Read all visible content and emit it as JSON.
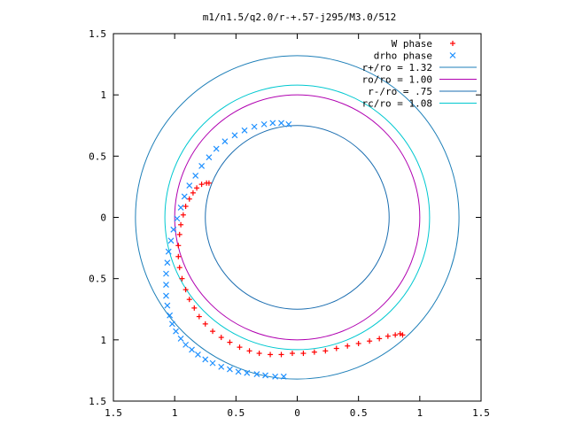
{
  "chart_data": {
    "type": "scatter",
    "title": "m1/n1.5/q2.0/r-+.57-j295/M3.0/512",
    "xlabel": "",
    "ylabel": "",
    "xlim": [
      -1.5,
      1.5
    ],
    "ylim": [
      -1.5,
      1.5
    ],
    "x_ticks": [
      -1.5,
      -1,
      -0.5,
      0,
      0.5,
      1,
      1.5
    ],
    "x_tick_labels": [
      "1.5",
      "1",
      "0.5",
      "0",
      "0.5",
      "1",
      "1.5"
    ],
    "y_ticks": [
      1.5,
      1,
      0.5,
      0,
      -0.5,
      -1,
      -1.5
    ],
    "y_tick_labels": [
      "1.5",
      "1",
      "0.5",
      "0",
      "0.5",
      "1",
      "1.5"
    ],
    "grid": false,
    "legend_position": "top-right",
    "legend": [
      {
        "label": "W phase",
        "kind": "marker",
        "marker": "+",
        "color": "#ff0000"
      },
      {
        "label": "drho phase",
        "kind": "marker",
        "marker": "x",
        "color": "#1e90ff"
      },
      {
        "label": "r+/ro = 1.32",
        "kind": "line",
        "color": "#1e7fb8"
      },
      {
        "label": "ro/ro = 1.00",
        "kind": "line",
        "color": "#b000b0"
      },
      {
        "label": "r-/ro = .75",
        "kind": "line",
        "color": "#1a6db0"
      },
      {
        "label": "rc/ro = 1.08",
        "kind": "line",
        "color": "#00c8d0"
      }
    ],
    "circles": [
      {
        "name": "r+/ro = 1.32",
        "radius": 1.32,
        "color": "#1e7fb8"
      },
      {
        "name": "ro/ro = 1.00",
        "radius": 1.0,
        "color": "#b000b0"
      },
      {
        "name": "r-/ro = .75",
        "radius": 0.75,
        "color": "#1a6db0"
      },
      {
        "name": "rc/ro = 1.08",
        "radius": 1.08,
        "color": "#00c8d0"
      }
    ],
    "series": [
      {
        "name": "W phase",
        "marker": "+",
        "color": "#ff0000",
        "x": [
          -0.72,
          -0.74,
          -0.78,
          -0.82,
          -0.85,
          -0.88,
          -0.91,
          -0.93,
          -0.95,
          -0.96,
          -0.97,
          -0.97,
          -0.96,
          -0.94,
          -0.91,
          -0.88,
          -0.84,
          -0.8,
          -0.75,
          -0.69,
          -0.62,
          -0.55,
          -0.47,
          -0.39,
          -0.31,
          -0.22,
          -0.13,
          -0.04,
          0.05,
          0.14,
          0.23,
          0.32,
          0.41,
          0.5,
          0.59,
          0.67,
          0.74,
          0.8,
          0.84,
          0.86
        ],
        "y": [
          0.28,
          0.28,
          0.27,
          0.24,
          0.2,
          0.15,
          0.09,
          0.02,
          -0.06,
          -0.14,
          -0.23,
          -0.32,
          -0.41,
          -0.5,
          -0.59,
          -0.67,
          -0.74,
          -0.81,
          -0.87,
          -0.93,
          -0.98,
          -1.02,
          -1.06,
          -1.09,
          -1.11,
          -1.12,
          -1.12,
          -1.11,
          -1.11,
          -1.1,
          -1.09,
          -1.07,
          -1.05,
          -1.03,
          -1.01,
          -0.99,
          -0.97,
          -0.96,
          -0.95,
          -0.96
        ]
      },
      {
        "name": "drho phase",
        "marker": "x",
        "color": "#1e90ff",
        "x": [
          -0.07,
          -0.13,
          -0.2,
          -0.27,
          -0.35,
          -0.43,
          -0.51,
          -0.59,
          -0.66,
          -0.72,
          -0.78,
          -0.83,
          -0.88,
          -0.92,
          -0.95,
          -0.98,
          -1.01,
          -1.03,
          -1.05,
          -1.06,
          -1.07,
          -1.07,
          -1.07,
          -1.06,
          -1.04,
          -1.02,
          -0.99,
          -0.95,
          -0.91,
          -0.86,
          -0.81,
          -0.75,
          -0.69,
          -0.62,
          -0.55,
          -0.48,
          -0.41,
          -0.33,
          -0.26,
          -0.18,
          -0.11
        ],
        "y": [
          0.76,
          0.77,
          0.77,
          0.76,
          0.74,
          0.71,
          0.67,
          0.62,
          0.56,
          0.49,
          0.42,
          0.34,
          0.26,
          0.17,
          0.08,
          -0.01,
          -0.1,
          -0.19,
          -0.28,
          -0.37,
          -0.46,
          -0.55,
          -0.64,
          -0.72,
          -0.8,
          -0.87,
          -0.93,
          -0.99,
          -1.04,
          -1.08,
          -1.12,
          -1.16,
          -1.19,
          -1.22,
          -1.24,
          -1.26,
          -1.27,
          -1.28,
          -1.29,
          -1.3,
          -1.3
        ]
      }
    ]
  }
}
